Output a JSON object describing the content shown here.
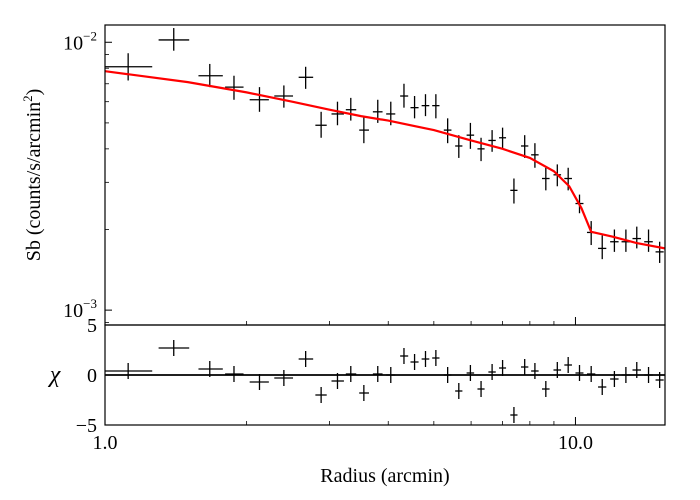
{
  "chart_data": {
    "type": "scatter",
    "title": "",
    "xlabel": "Radius (arcmin)",
    "xscale": "log",
    "xlim": [
      1.0,
      15.5
    ],
    "x_ticks": [
      {
        "value": 1.0,
        "label": "1.0"
      },
      {
        "value": 10.0,
        "label": "10.0"
      }
    ],
    "top_panel": {
      "ylabel": "Sb (counts/s/arcmin",
      "ylabel_sup": "2",
      "ylabel_close": ")",
      "yscale": "log",
      "ylim": [
        0.00088,
        0.0116
      ],
      "y_ticks": [
        {
          "value": 0.001,
          "base": "10",
          "exp": "−3"
        },
        {
          "value": 0.01,
          "base": "10",
          "exp": "−2"
        }
      ],
      "series": [
        {
          "name": "data",
          "color": "#000000",
          "points": [
            {
              "x": 1.12,
              "xlo": 1.0,
              "xhi": 1.26,
              "y": 0.0081,
              "ylo": 0.0072,
              "yhi": 0.0091
            },
            {
              "x": 1.4,
              "xlo": 1.3,
              "xhi": 1.51,
              "y": 0.0102,
              "ylo": 0.0093,
              "yhi": 0.0113
            },
            {
              "x": 1.67,
              "xlo": 1.58,
              "xhi": 1.78,
              "y": 0.0075,
              "ylo": 0.0068,
              "yhi": 0.0083
            },
            {
              "x": 1.88,
              "xlo": 1.8,
              "xhi": 1.97,
              "y": 0.0068,
              "ylo": 0.0061,
              "yhi": 0.0075
            },
            {
              "x": 2.13,
              "xlo": 2.03,
              "xhi": 2.23,
              "y": 0.0061,
              "ylo": 0.0055,
              "yhi": 0.0068
            },
            {
              "x": 2.4,
              "xlo": 2.29,
              "xhi": 2.51,
              "y": 0.0063,
              "ylo": 0.0057,
              "yhi": 0.0069
            },
            {
              "x": 2.67,
              "xlo": 2.58,
              "xhi": 2.77,
              "y": 0.0074,
              "ylo": 0.0067,
              "yhi": 0.0081
            },
            {
              "x": 2.88,
              "xlo": 2.8,
              "xhi": 2.96,
              "y": 0.0049,
              "ylo": 0.0044,
              "yhi": 0.0055
            },
            {
              "x": 3.12,
              "xlo": 3.03,
              "xhi": 3.22,
              "y": 0.0054,
              "ylo": 0.0049,
              "yhi": 0.006
            },
            {
              "x": 3.33,
              "xlo": 3.25,
              "xhi": 3.42,
              "y": 0.0056,
              "ylo": 0.0051,
              "yhi": 0.0062
            },
            {
              "x": 3.55,
              "xlo": 3.47,
              "xhi": 3.64,
              "y": 0.0047,
              "ylo": 0.0042,
              "yhi": 0.0053
            },
            {
              "x": 3.8,
              "xlo": 3.71,
              "xhi": 3.89,
              "y": 0.0055,
              "ylo": 0.005,
              "yhi": 0.0061
            },
            {
              "x": 4.05,
              "xlo": 3.96,
              "xhi": 4.14,
              "y": 0.0054,
              "ylo": 0.0049,
              "yhi": 0.006
            },
            {
              "x": 4.32,
              "xlo": 4.24,
              "xhi": 4.41,
              "y": 0.0063,
              "ylo": 0.0057,
              "yhi": 0.007
            },
            {
              "x": 4.55,
              "xlo": 4.46,
              "xhi": 4.64,
              "y": 0.0057,
              "ylo": 0.0052,
              "yhi": 0.0063
            },
            {
              "x": 4.8,
              "xlo": 4.71,
              "xhi": 4.89,
              "y": 0.0058,
              "ylo": 0.0053,
              "yhi": 0.0064
            },
            {
              "x": 5.05,
              "xlo": 4.96,
              "xhi": 5.14,
              "y": 0.0058,
              "ylo": 0.0052,
              "yhi": 0.0064
            },
            {
              "x": 5.35,
              "xlo": 5.25,
              "xhi": 5.45,
              "y": 0.0047,
              "ylo": 0.0042,
              "yhi": 0.0052
            },
            {
              "x": 5.65,
              "xlo": 5.55,
              "xhi": 5.75,
              "y": 0.0041,
              "ylo": 0.0037,
              "yhi": 0.0045
            },
            {
              "x": 5.98,
              "xlo": 5.87,
              "xhi": 6.09,
              "y": 0.0045,
              "ylo": 0.004,
              "yhi": 0.005
            },
            {
              "x": 6.3,
              "xlo": 6.19,
              "xhi": 6.41,
              "y": 0.004,
              "ylo": 0.0036,
              "yhi": 0.0044
            },
            {
              "x": 6.65,
              "xlo": 6.53,
              "xhi": 6.77,
              "y": 0.0043,
              "ylo": 0.0039,
              "yhi": 0.0047
            },
            {
              "x": 7.0,
              "xlo": 6.88,
              "xhi": 7.12,
              "y": 0.0044,
              "ylo": 0.004,
              "yhi": 0.0048
            },
            {
              "x": 7.4,
              "xlo": 7.27,
              "xhi": 7.53,
              "y": 0.0028,
              "ylo": 0.0025,
              "yhi": 0.0031
            },
            {
              "x": 7.8,
              "xlo": 7.66,
              "xhi": 7.94,
              "y": 0.0041,
              "ylo": 0.0037,
              "yhi": 0.0045
            },
            {
              "x": 8.2,
              "xlo": 8.05,
              "xhi": 8.35,
              "y": 0.0038,
              "ylo": 0.0034,
              "yhi": 0.0042
            },
            {
              "x": 8.65,
              "xlo": 8.49,
              "xhi": 8.81,
              "y": 0.0031,
              "ylo": 0.0028,
              "yhi": 0.0034
            },
            {
              "x": 9.15,
              "xlo": 8.98,
              "xhi": 9.32,
              "y": 0.0032,
              "ylo": 0.0029,
              "yhi": 0.0035
            },
            {
              "x": 9.65,
              "xlo": 9.47,
              "xhi": 9.83,
              "y": 0.0031,
              "ylo": 0.0028,
              "yhi": 0.0034
            },
            {
              "x": 10.2,
              "xlo": 10.0,
              "xhi": 10.4,
              "y": 0.0025,
              "ylo": 0.0023,
              "yhi": 0.0027
            },
            {
              "x": 10.8,
              "xlo": 10.58,
              "xhi": 11.02,
              "y": 0.00195,
              "ylo": 0.00175,
              "yhi": 0.00215
            },
            {
              "x": 11.4,
              "xlo": 11.17,
              "xhi": 11.63,
              "y": 0.0017,
              "ylo": 0.00155,
              "yhi": 0.0019
            },
            {
              "x": 12.1,
              "xlo": 11.85,
              "xhi": 12.35,
              "y": 0.0018,
              "ylo": 0.00165,
              "yhi": 0.002
            },
            {
              "x": 12.8,
              "xlo": 12.53,
              "xhi": 13.07,
              "y": 0.0018,
              "ylo": 0.00165,
              "yhi": 0.002
            },
            {
              "x": 13.5,
              "xlo": 13.22,
              "xhi": 13.78,
              "y": 0.00185,
              "ylo": 0.0017,
              "yhi": 0.00205
            },
            {
              "x": 14.3,
              "xlo": 14.0,
              "xhi": 14.6,
              "y": 0.0018,
              "ylo": 0.00165,
              "yhi": 0.002
            },
            {
              "x": 15.1,
              "xlo": 14.8,
              "xhi": 15.4,
              "y": 0.00165,
              "ylo": 0.0015,
              "yhi": 0.0018
            }
          ]
        },
        {
          "name": "model",
          "color": "#ff0000",
          "line": [
            {
              "x": 1.0,
              "y": 0.0078
            },
            {
              "x": 1.5,
              "y": 0.0071
            },
            {
              "x": 2.0,
              "y": 0.0065
            },
            {
              "x": 2.5,
              "y": 0.006
            },
            {
              "x": 3.0,
              "y": 0.0056
            },
            {
              "x": 3.5,
              "y": 0.0053
            },
            {
              "x": 4.0,
              "y": 0.0051
            },
            {
              "x": 5.0,
              "y": 0.0047
            },
            {
              "x": 6.0,
              "y": 0.0043
            },
            {
              "x": 7.0,
              "y": 0.004
            },
            {
              "x": 8.0,
              "y": 0.0037
            },
            {
              "x": 9.0,
              "y": 0.0033
            },
            {
              "x": 9.7,
              "y": 0.0029
            },
            {
              "x": 10.3,
              "y": 0.0024
            },
            {
              "x": 10.8,
              "y": 0.00196
            },
            {
              "x": 12.0,
              "y": 0.00188
            },
            {
              "x": 13.5,
              "y": 0.00178
            },
            {
              "x": 15.5,
              "y": 0.0017
            }
          ]
        }
      ]
    },
    "bottom_panel": {
      "ylabel": "χ",
      "ylim": [
        -5,
        5
      ],
      "y_ticks": [
        {
          "value": 5,
          "label": "5"
        },
        {
          "value": 0,
          "label": "0"
        },
        {
          "value": -5,
          "label": "−5"
        }
      ],
      "zero_line": true,
      "residual_half_height": 0.8,
      "residuals": [
        {
          "x": 1.12,
          "xlo": 1.0,
          "xhi": 1.26,
          "y": 0.4
        },
        {
          "x": 1.4,
          "xlo": 1.3,
          "xhi": 1.51,
          "y": 2.7
        },
        {
          "x": 1.67,
          "xlo": 1.58,
          "xhi": 1.78,
          "y": 0.6
        },
        {
          "x": 1.88,
          "xlo": 1.8,
          "xhi": 1.97,
          "y": 0.1
        },
        {
          "x": 2.13,
          "xlo": 2.03,
          "xhi": 2.23,
          "y": -0.7
        },
        {
          "x": 2.4,
          "xlo": 2.29,
          "xhi": 2.51,
          "y": -0.3
        },
        {
          "x": 2.67,
          "xlo": 2.58,
          "xhi": 2.77,
          "y": 1.6
        },
        {
          "x": 2.88,
          "xlo": 2.8,
          "xhi": 2.96,
          "y": -2.0
        },
        {
          "x": 3.12,
          "xlo": 3.03,
          "xhi": 3.22,
          "y": -0.6
        },
        {
          "x": 3.33,
          "xlo": 3.25,
          "xhi": 3.42,
          "y": 0.1
        },
        {
          "x": 3.55,
          "xlo": 3.47,
          "xhi": 3.64,
          "y": -1.8
        },
        {
          "x": 3.8,
          "xlo": 3.71,
          "xhi": 3.89,
          "y": 0.1
        },
        {
          "x": 4.05,
          "xlo": 3.96,
          "xhi": 4.14,
          "y": 0.0
        },
        {
          "x": 4.32,
          "xlo": 4.24,
          "xhi": 4.41,
          "y": 1.9
        },
        {
          "x": 4.55,
          "xlo": 4.46,
          "xhi": 4.64,
          "y": 1.3
        },
        {
          "x": 4.8,
          "xlo": 4.71,
          "xhi": 4.89,
          "y": 1.6
        },
        {
          "x": 5.05,
          "xlo": 4.96,
          "xhi": 5.14,
          "y": 1.7
        },
        {
          "x": 5.35,
          "xlo": 5.25,
          "xhi": 5.45,
          "y": 0.0
        },
        {
          "x": 5.65,
          "xlo": 5.55,
          "xhi": 5.75,
          "y": -1.6
        },
        {
          "x": 5.98,
          "xlo": 5.87,
          "xhi": 6.09,
          "y": 0.2
        },
        {
          "x": 6.3,
          "xlo": 6.19,
          "xhi": 6.41,
          "y": -1.4
        },
        {
          "x": 6.65,
          "xlo": 6.53,
          "xhi": 6.77,
          "y": 0.3
        },
        {
          "x": 7.0,
          "xlo": 6.88,
          "xhi": 7.12,
          "y": 0.7
        },
        {
          "x": 7.4,
          "xlo": 7.27,
          "xhi": 7.53,
          "y": -4.0
        },
        {
          "x": 7.8,
          "xlo": 7.66,
          "xhi": 7.94,
          "y": 0.8
        },
        {
          "x": 8.2,
          "xlo": 8.05,
          "xhi": 8.35,
          "y": 0.4
        },
        {
          "x": 8.65,
          "xlo": 8.49,
          "xhi": 8.81,
          "y": -1.4
        },
        {
          "x": 9.15,
          "xlo": 8.98,
          "xhi": 9.32,
          "y": 0.5
        },
        {
          "x": 9.65,
          "xlo": 9.47,
          "xhi": 9.83,
          "y": 1.0
        },
        {
          "x": 10.2,
          "xlo": 10.0,
          "xhi": 10.4,
          "y": 0.2
        },
        {
          "x": 10.8,
          "xlo": 10.58,
          "xhi": 11.02,
          "y": 0.1
        },
        {
          "x": 11.4,
          "xlo": 11.17,
          "xhi": 11.63,
          "y": -1.2
        },
        {
          "x": 12.1,
          "xlo": 11.85,
          "xhi": 12.35,
          "y": -0.4
        },
        {
          "x": 12.8,
          "xlo": 12.53,
          "xhi": 13.07,
          "y": 0.0
        },
        {
          "x": 13.5,
          "xlo": 13.22,
          "xhi": 13.78,
          "y": 0.5
        },
        {
          "x": 14.3,
          "xlo": 14.0,
          "xhi": 14.6,
          "y": 0.0
        },
        {
          "x": 15.1,
          "xlo": 14.8,
          "xhi": 15.4,
          "y": -0.5
        }
      ]
    }
  }
}
